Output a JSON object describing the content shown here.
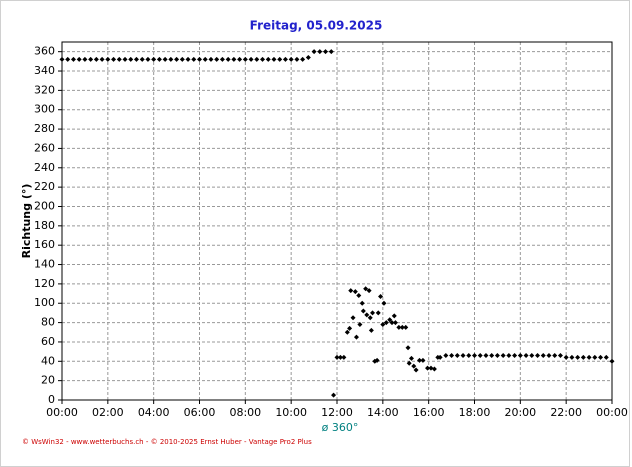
{
  "chart_data": {
    "type": "scatter",
    "title": "Freitag, 05.09.2025",
    "y_label": "Richtung (°)",
    "annotation": "ø 360°",
    "footer": "© WsWin32 - www.wetterbuchs.ch - © 2010-2025 Ernst Huber - Vantage Pro2 Plus",
    "color": "#000000",
    "grid": true,
    "xlim": [
      0,
      24
    ],
    "xticks": [
      {
        "value": 0,
        "label": "00:00"
      },
      {
        "value": 2,
        "label": "02:00"
      },
      {
        "value": 4,
        "label": "04:00"
      },
      {
        "value": 6,
        "label": "06:00"
      },
      {
        "value": 8,
        "label": "08:00"
      },
      {
        "value": 10,
        "label": "10:00"
      },
      {
        "value": 12,
        "label": "12:00"
      },
      {
        "value": 14,
        "label": "14:00"
      },
      {
        "value": 16,
        "label": "16:00"
      },
      {
        "value": 18,
        "label": "18:00"
      },
      {
        "value": 20,
        "label": "20:00"
      },
      {
        "value": 22,
        "label": "22:00"
      },
      {
        "value": 24,
        "label": "00:00"
      }
    ],
    "ylim": [
      0,
      370
    ],
    "yticks": [
      0,
      20,
      40,
      60,
      80,
      100,
      120,
      140,
      160,
      180,
      200,
      220,
      240,
      260,
      280,
      300,
      320,
      340,
      360
    ],
    "x": [
      0,
      0.25,
      0.5,
      0.75,
      1,
      1.25,
      1.5,
      1.75,
      2,
      2.25,
      2.5,
      2.75,
      3,
      3.25,
      3.5,
      3.75,
      4,
      4.25,
      4.5,
      4.75,
      5,
      5.25,
      5.5,
      5.75,
      6,
      6.25,
      6.5,
      6.75,
      7,
      7.25,
      7.5,
      7.75,
      8,
      8.25,
      8.5,
      8.75,
      9,
      9.25,
      9.5,
      9.75,
      10,
      10.25,
      10.5,
      10.75,
      11,
      11.25,
      11.5,
      11.75,
      11.85,
      12,
      12.15,
      12.3,
      12.45,
      12.55,
      12.6,
      12.7,
      12.8,
      12.85,
      12.95,
      13.0,
      13.1,
      13.15,
      13.25,
      13.3,
      13.4,
      13.45,
      13.5,
      13.55,
      13.65,
      13.75,
      13.8,
      13.9,
      14.0,
      14.05,
      14.15,
      14.3,
      14.4,
      14.5,
      14.55,
      14.7,
      14.85,
      15.0,
      15.1,
      15.15,
      15.25,
      15.35,
      15.45,
      15.6,
      15.75,
      15.95,
      16.1,
      16.25,
      16.4,
      16.5,
      16.75,
      17,
      17.25,
      17.5,
      17.75,
      18,
      18.25,
      18.5,
      18.75,
      19,
      19.25,
      19.5,
      19.75,
      20,
      20.25,
      20.5,
      20.75,
      21,
      21.25,
      21.5,
      21.75,
      22,
      22.25,
      22.5,
      22.75,
      23,
      23.25,
      23.5,
      23.75,
      24
    ],
    "values": [
      352,
      352,
      352,
      352,
      352,
      352,
      352,
      352,
      352,
      352,
      352,
      352,
      352,
      352,
      352,
      352,
      352,
      352,
      352,
      352,
      352,
      352,
      352,
      352,
      352,
      352,
      352,
      352,
      352,
      352,
      352,
      352,
      352,
      352,
      352,
      352,
      352,
      352,
      352,
      352,
      352,
      352,
      352,
      354,
      360,
      360,
      360,
      360,
      5,
      44,
      44,
      44,
      70,
      74,
      113,
      85,
      112,
      65,
      108,
      78,
      100,
      92,
      115,
      88,
      113,
      85,
      72,
      90,
      40,
      41,
      90,
      107,
      78,
      100,
      80,
      83,
      80,
      87,
      80,
      75,
      75,
      75,
      54,
      38,
      43,
      35,
      31,
      41,
      41,
      33,
      33,
      32,
      44,
      44,
      46,
      46,
      46,
      46,
      46,
      46,
      46,
      46,
      46,
      46,
      46,
      46,
      46,
      46,
      46,
      46,
      46,
      46,
      46,
      46,
      46,
      44,
      44,
      44,
      44,
      44,
      44,
      44,
      44,
      40
    ]
  }
}
